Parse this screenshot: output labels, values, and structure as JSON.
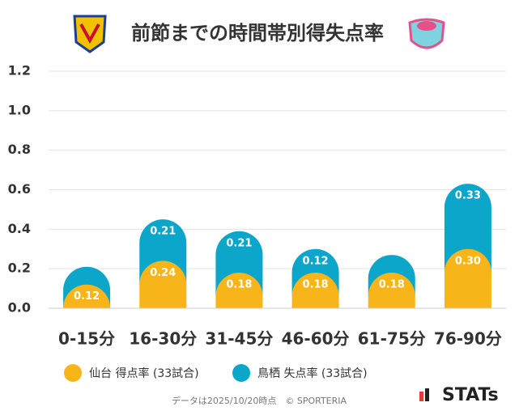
{
  "chart_data": {
    "type": "stacked_bar",
    "title": "前節までの時間帯別得失点率",
    "categories": [
      "0-15分",
      "16-30分",
      "31-45分",
      "46-60分",
      "61-75分",
      "76-90分"
    ],
    "series": [
      {
        "name": "仙台 得点率 (33試合)",
        "color": "#f7b519",
        "values": [
          0.12,
          0.24,
          0.18,
          0.18,
          0.18,
          0.3
        ],
        "value_labels": [
          "0.12",
          "0.24",
          "0.18",
          "0.18",
          "0.18",
          "0.30"
        ]
      },
      {
        "name": "鳥栖 失点率 (33試合)",
        "color": "#0ba6c9",
        "values": [
          0.09,
          0.21,
          0.21,
          0.12,
          0.09,
          0.33
        ],
        "value_labels": [
          null,
          "0.21",
          "0.21",
          "0.12",
          null,
          "0.33"
        ]
      }
    ],
    "ylim": [
      0,
      1.2
    ],
    "yticks": [
      {
        "value": 0,
        "label": "0.0"
      },
      0.2,
      0.4,
      0.6,
      0.8,
      {
        "value": 1,
        "label": "1.0"
      },
      1.2
    ],
    "grid": true,
    "footer": "データは2025/10/20時点　© SPORTERIA",
    "brand": "STATs"
  }
}
